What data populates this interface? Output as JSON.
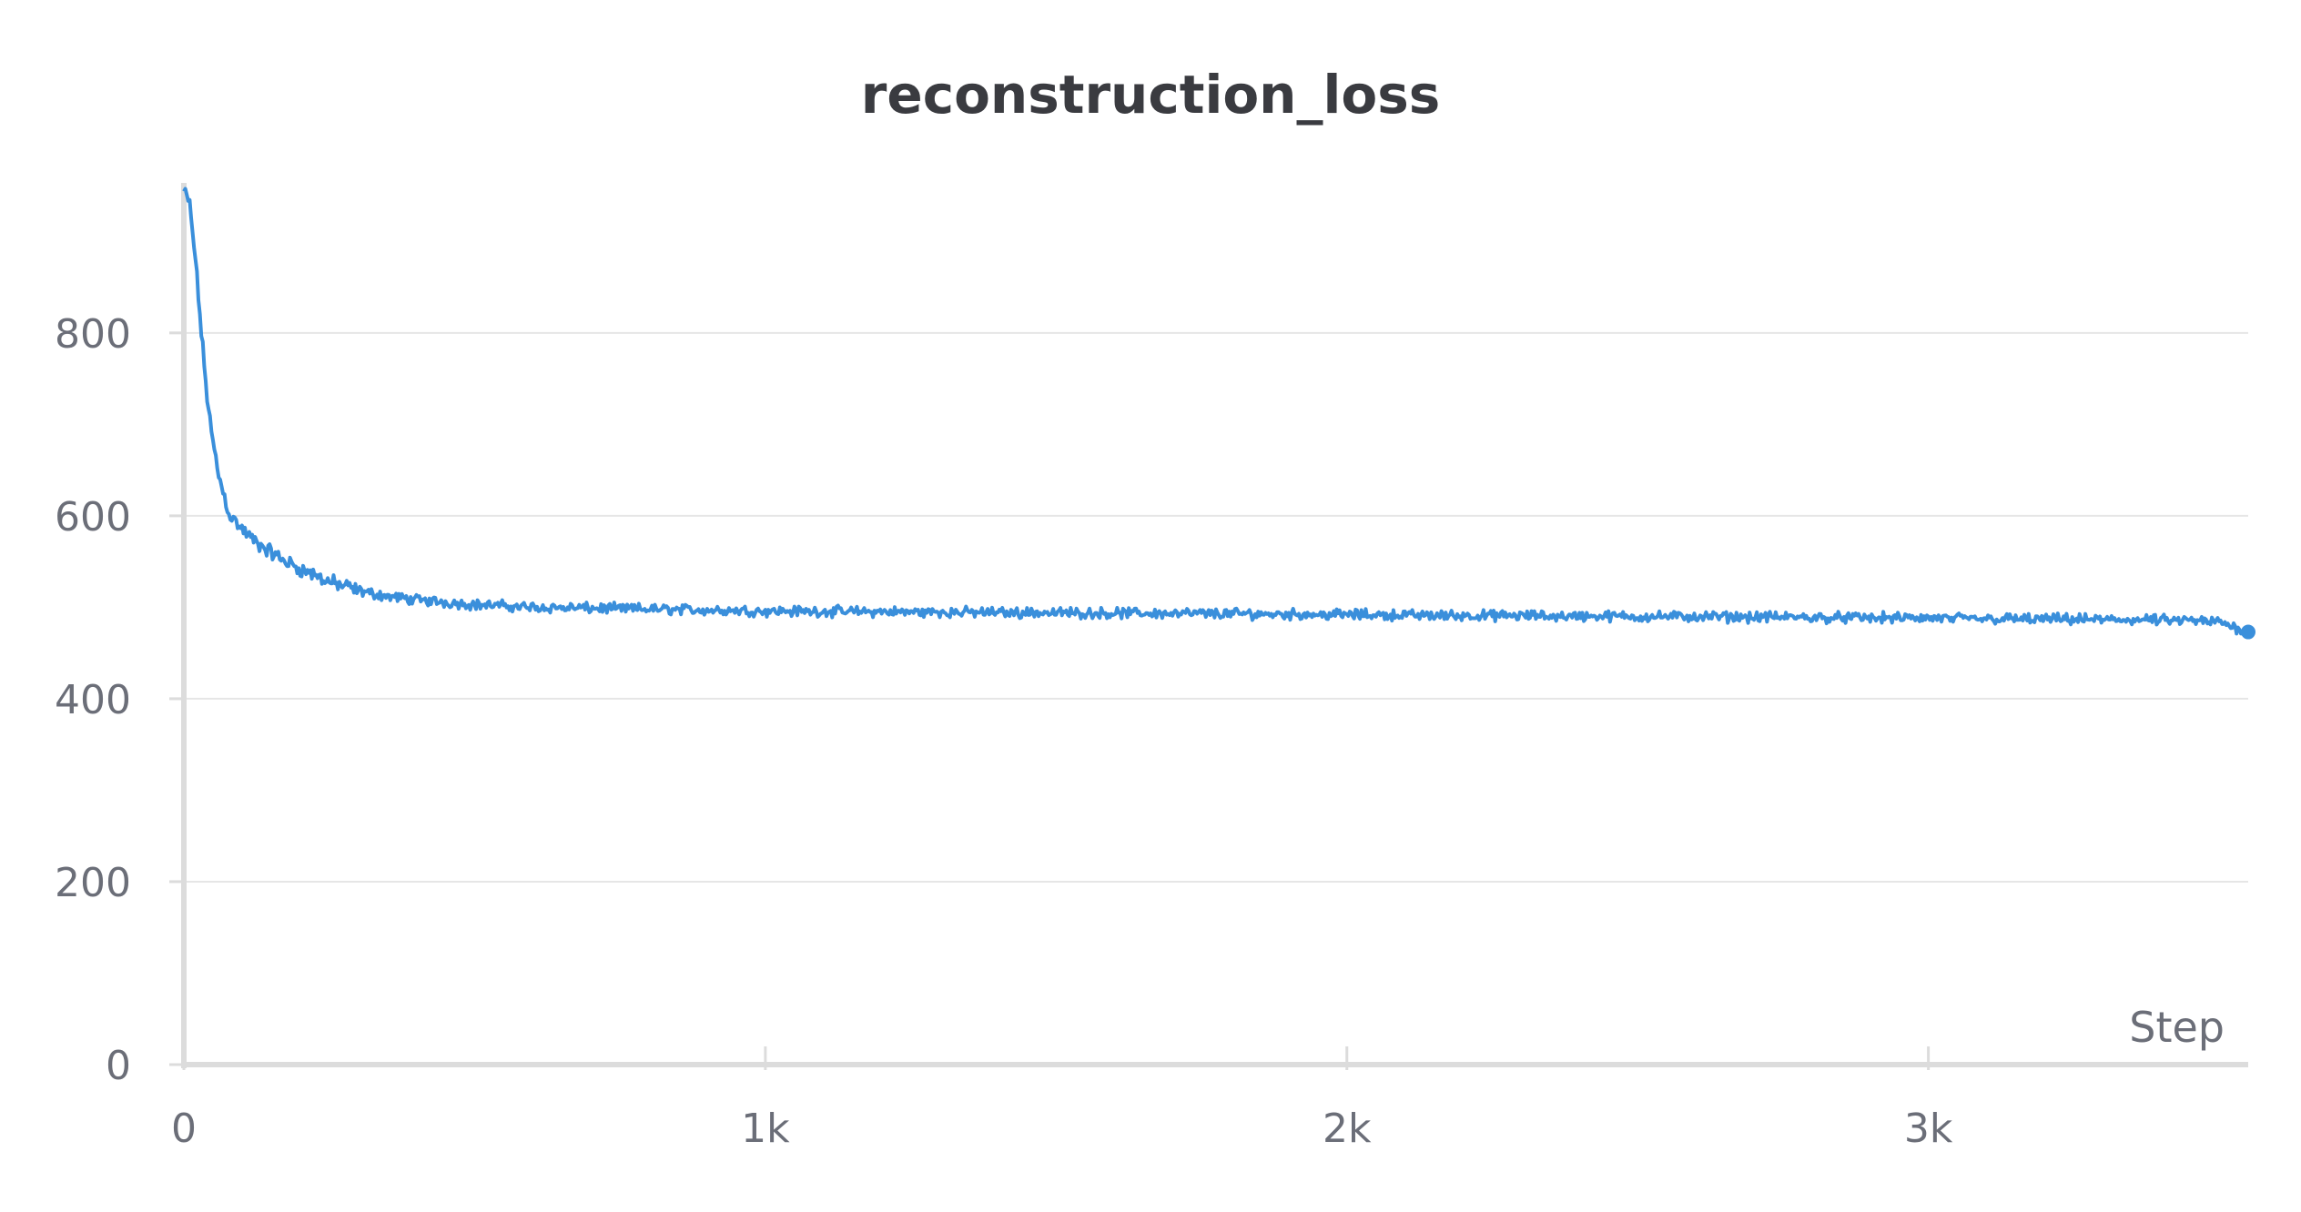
{
  "chart_data": {
    "type": "line",
    "title": "reconstruction_loss",
    "xlabel": "Step",
    "ylabel": "",
    "xlim": [
      0,
      3550
    ],
    "ylim": [
      0,
      960
    ],
    "x_ticks": [
      0,
      1000,
      2000,
      3000
    ],
    "x_tick_labels": [
      "0",
      "1k",
      "2k",
      "3k"
    ],
    "y_ticks": [
      0,
      200,
      400,
      600,
      800
    ],
    "y_tick_labels": [
      "0",
      "200",
      "400",
      "600",
      "800"
    ],
    "grid": "horizontal",
    "legend": "none",
    "series": [
      {
        "color": "#3a8fdb",
        "x": [
          0,
          10,
          20,
          30,
          40,
          50,
          60,
          70,
          80,
          100,
          125,
          150,
          175,
          200,
          250,
          300,
          350,
          400,
          500,
          600,
          700,
          800,
          1000,
          1200,
          1500,
          1800,
          2000,
          2200,
          2500,
          2800,
          3000,
          3200,
          3400,
          3500,
          3550
        ],
        "y": [
          955,
          940,
          880,
          800,
          730,
          680,
          645,
          620,
          600,
          585,
          570,
          560,
          550,
          542,
          528,
          518,
          512,
          508,
          503,
          500,
          499,
          498,
          496,
          495,
          494,
          493,
          492,
          491,
          490,
          489,
          488,
          487,
          486,
          484,
          473
        ]
      }
    ]
  }
}
